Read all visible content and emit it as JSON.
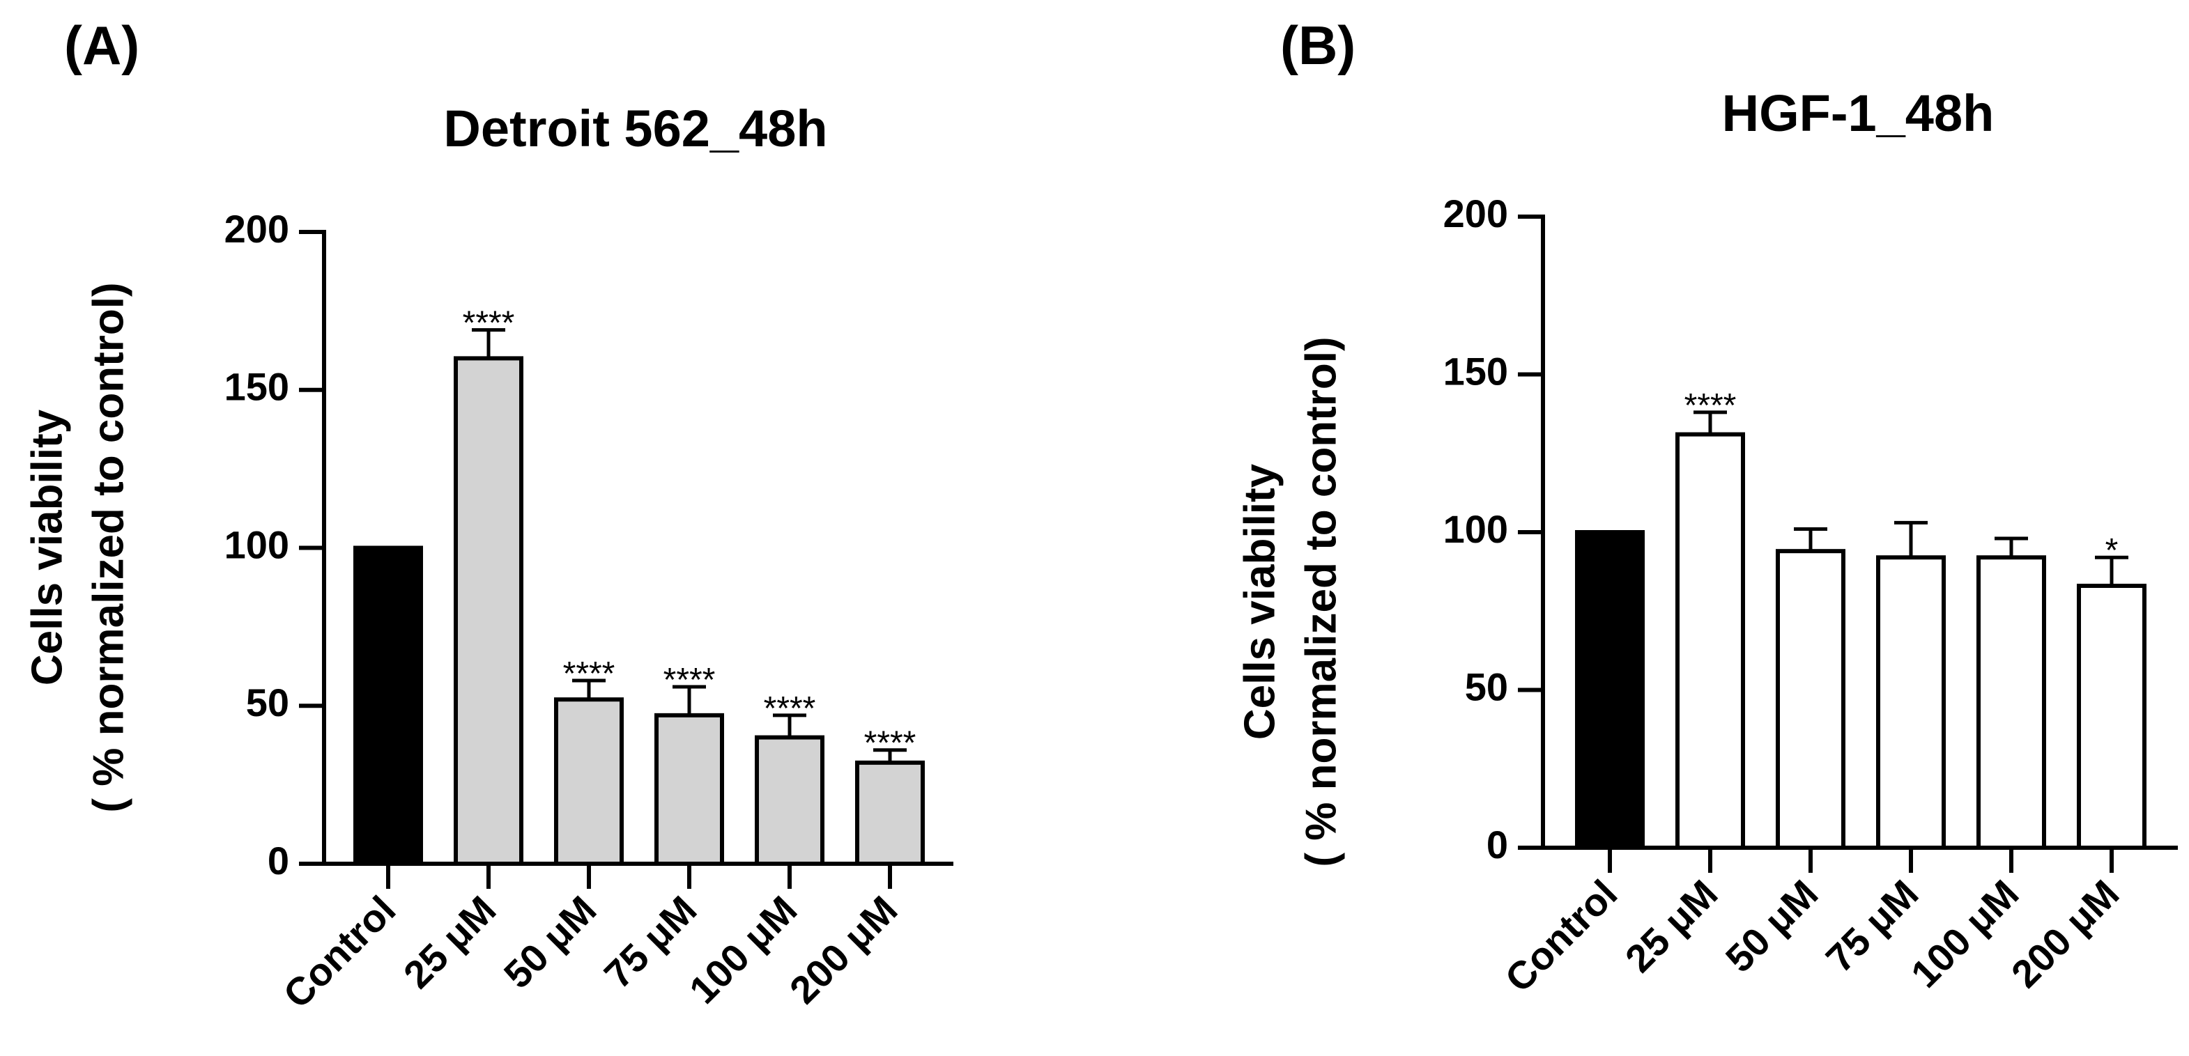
{
  "chart_data": [
    {
      "type": "bar",
      "panel_label": "(A)",
      "title": "Detroit 562_48h",
      "ylabel_line1": "Cells viability",
      "ylabel_line2": "( % normalized to control)",
      "xlabel": "",
      "ylim": [
        0,
        200
      ],
      "yticks": [
        0,
        50,
        100,
        150,
        200
      ],
      "categories": [
        "Control",
        "25 μM",
        "50 μM",
        "75 μM",
        "100 μM",
        "200 μM"
      ],
      "values": [
        100,
        160,
        52,
        47,
        40,
        32
      ],
      "errors": [
        0,
        9,
        6,
        9,
        7,
        4
      ],
      "significance": [
        "",
        "****",
        "****",
        "****",
        "****",
        "****"
      ],
      "bar_fills": [
        "#000000",
        "#d3d3d3",
        "#d3d3d3",
        "#d3d3d3",
        "#d3d3d3",
        "#d3d3d3"
      ]
    },
    {
      "type": "bar",
      "panel_label": "(B)",
      "title": "HGF-1_48h",
      "ylabel_line1": "Cells viability",
      "ylabel_line2": "( % normalized to control)",
      "xlabel": "",
      "ylim": [
        0,
        200
      ],
      "yticks": [
        0,
        50,
        100,
        150,
        200
      ],
      "categories": [
        "Control",
        "25 μM",
        "50 μM",
        "75 μM",
        "100 μM",
        "200 μM"
      ],
      "values": [
        100,
        131,
        94,
        92,
        92,
        83
      ],
      "errors": [
        0,
        7,
        7,
        11,
        6,
        9
      ],
      "significance": [
        "",
        "****",
        "",
        "",
        "",
        "*"
      ],
      "bar_fills": [
        "#000000",
        "#ffffff",
        "#ffffff",
        "#ffffff",
        "#ffffff",
        "#ffffff"
      ]
    }
  ]
}
